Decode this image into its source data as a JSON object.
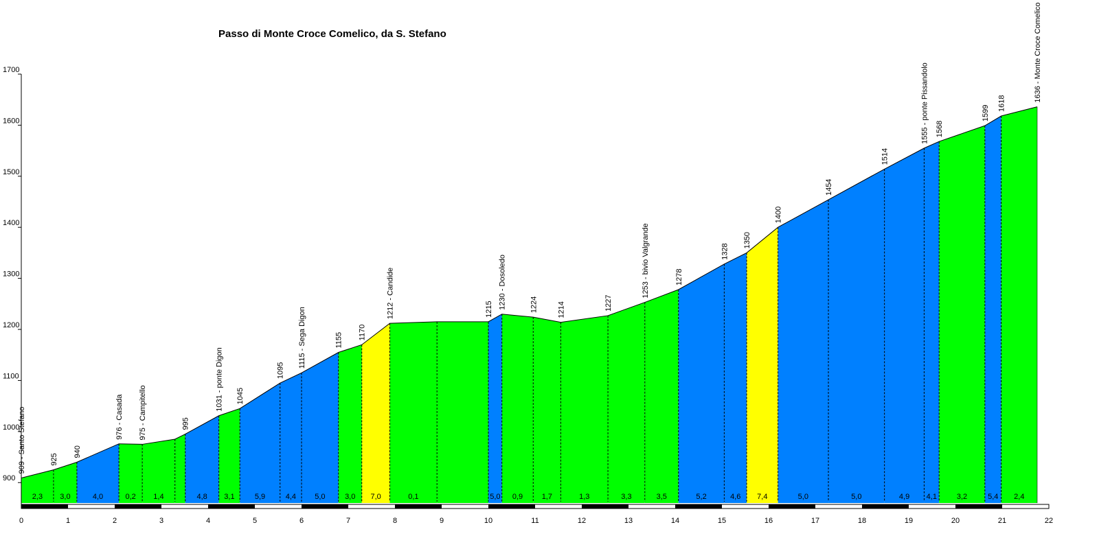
{
  "chart_data": {
    "type": "area",
    "title": "Passo di Monte Croce Comelico, da S. Stefano",
    "xlabel": "",
    "ylabel": "",
    "xlim": [
      0,
      22
    ],
    "ylim": [
      860,
      1700
    ],
    "x_ticks": [
      "0",
      "1",
      "2",
      "3",
      "4",
      "5",
      "6",
      "7",
      "8",
      "9",
      "10",
      "11",
      "12",
      "13",
      "14",
      "15",
      "16",
      "17",
      "18",
      "19",
      "20",
      "21",
      "22"
    ],
    "y_ticks": [
      "900",
      "1000",
      "1100",
      "1200",
      "1300",
      "1400",
      "1500",
      "1600",
      "1700"
    ],
    "grid": false,
    "legend": "none",
    "colors": {
      "green": "#00ff00",
      "blue": "#0080ff",
      "yellow": "#ffff00",
      "outline": "#000000"
    },
    "points": [
      {
        "x": 0.0,
        "y": 909,
        "label": "909 - Santo Stefano"
      },
      {
        "x": 0.69,
        "y": 925,
        "label": "925"
      },
      {
        "x": 1.19,
        "y": 940,
        "label": "940"
      },
      {
        "x": 2.09,
        "y": 976,
        "label": "976 - Casada"
      },
      {
        "x": 2.59,
        "y": 975,
        "label": "975 - Campitello"
      },
      {
        "x": 3.29,
        "y": 985,
        "label": ""
      },
      {
        "x": 3.51,
        "y": 995,
        "label": "995"
      },
      {
        "x": 4.23,
        "y": 1031,
        "label": "1031 - ponte Digon"
      },
      {
        "x": 4.68,
        "y": 1045,
        "label": "1045"
      },
      {
        "x": 5.54,
        "y": 1095,
        "label": "1095"
      },
      {
        "x": 6.0,
        "y": 1115,
        "label": "1115 - Sega Digon"
      },
      {
        "x": 6.79,
        "y": 1155,
        "label": "1155"
      },
      {
        "x": 7.29,
        "y": 1170,
        "label": "1170"
      },
      {
        "x": 7.89,
        "y": 1212,
        "label": "1212 - Candide"
      },
      {
        "x": 8.9,
        "y": 1215,
        "label": ""
      },
      {
        "x": 10.0,
        "y": 1215,
        "label": "1215"
      },
      {
        "x": 10.29,
        "y": 1230,
        "label": "1230 - Dosoledo"
      },
      {
        "x": 10.96,
        "y": 1224,
        "label": "1224"
      },
      {
        "x": 11.55,
        "y": 1214,
        "label": "1214"
      },
      {
        "x": 12.56,
        "y": 1227,
        "label": "1227"
      },
      {
        "x": 13.35,
        "y": 1253,
        "label": "1253 - bivio Valgrande"
      },
      {
        "x": 14.07,
        "y": 1278,
        "label": "1278"
      },
      {
        "x": 15.05,
        "y": 1328,
        "label": "1328"
      },
      {
        "x": 15.53,
        "y": 1350,
        "label": "1350"
      },
      {
        "x": 16.2,
        "y": 1400,
        "label": "1400"
      },
      {
        "x": 17.28,
        "y": 1454,
        "label": "1454"
      },
      {
        "x": 18.48,
        "y": 1514,
        "label": "1514"
      },
      {
        "x": 19.33,
        "y": 1555,
        "label": "1555 - ponte Pissandolo"
      },
      {
        "x": 19.65,
        "y": 1568,
        "label": "1568"
      },
      {
        "x": 20.63,
        "y": 1599,
        "label": "1599"
      },
      {
        "x": 20.98,
        "y": 1618,
        "label": "1618"
      },
      {
        "x": 21.75,
        "y": 1636,
        "label": "1636 - Monte Croce Comelico"
      }
    ],
    "segments": [
      {
        "grade": "2,3",
        "color": "green"
      },
      {
        "grade": "3,0",
        "color": "green"
      },
      {
        "grade": "4,0",
        "color": "blue"
      },
      {
        "grade": "0,2",
        "color": "green"
      },
      {
        "grade": "1,4",
        "color": "green"
      },
      {
        "grade": "",
        "color": "green"
      },
      {
        "grade": "4,8",
        "color": "blue"
      },
      {
        "grade": "3,1",
        "color": "green"
      },
      {
        "grade": "5,9",
        "color": "blue"
      },
      {
        "grade": "4,4",
        "color": "blue"
      },
      {
        "grade": "5,0",
        "color": "blue"
      },
      {
        "grade": "3,0",
        "color": "green"
      },
      {
        "grade": "7,0",
        "color": "yellow"
      },
      {
        "grade": "0,1",
        "color": "green"
      },
      {
        "grade": "",
        "color": "green"
      },
      {
        "grade": "5,0",
        "color": "blue"
      },
      {
        "grade": "0,9",
        "color": "green"
      },
      {
        "grade": "1,7",
        "color": "green"
      },
      {
        "grade": "1,3",
        "color": "green"
      },
      {
        "grade": "3,3",
        "color": "green"
      },
      {
        "grade": "3,5",
        "color": "green"
      },
      {
        "grade": "5,2",
        "color": "blue"
      },
      {
        "grade": "4,6",
        "color": "blue"
      },
      {
        "grade": "7,4",
        "color": "yellow"
      },
      {
        "grade": "5,0",
        "color": "blue"
      },
      {
        "grade": "5,0",
        "color": "blue"
      },
      {
        "grade": "4,9",
        "color": "blue"
      },
      {
        "grade": "4,1",
        "color": "blue"
      },
      {
        "grade": "3,2",
        "color": "green"
      },
      {
        "grade": "5,4",
        "color": "blue"
      },
      {
        "grade": "2,4",
        "color": "green"
      }
    ]
  }
}
